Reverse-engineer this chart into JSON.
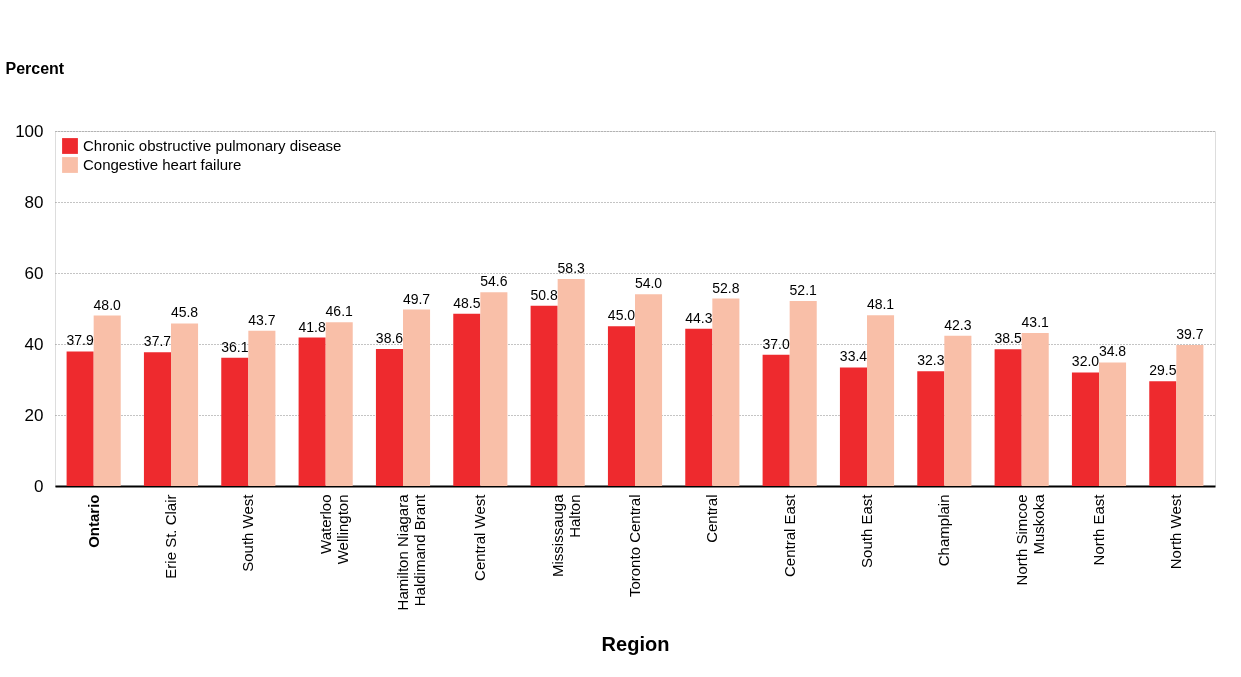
{
  "chart_data": {
    "type": "bar",
    "xlabel": "Region",
    "ylabel": "Percent",
    "categories": [
      "Ontario",
      "Erie St. Clair",
      "South West",
      "Waterloo\nWellington",
      "Hamilton Niagara\nHaldimand Brant",
      "Central West",
      "Mississauga\nHalton",
      "Toronto Central",
      "Central",
      "Central East",
      "South East",
      "Champlain",
      "North Simcoe\nMuskoka",
      "North East",
      "North West"
    ],
    "series": [
      {
        "name": "Chronic obstructive pulmonary disease",
        "color": "#ee2a2e",
        "values": [
          37.9,
          37.7,
          36.1,
          41.8,
          38.6,
          48.5,
          50.8,
          45.0,
          44.3,
          37.0,
          33.4,
          32.3,
          38.5,
          32.0,
          29.5
        ]
      },
      {
        "name": "Congestive heart failure",
        "color": "#f9bfa8",
        "values": [
          48.0,
          45.8,
          43.7,
          46.1,
          49.7,
          54.6,
          58.3,
          54.0,
          52.8,
          52.1,
          48.1,
          42.3,
          43.1,
          34.8,
          39.7
        ]
      }
    ],
    "value_labels": [
      [
        "37.9",
        "37.7",
        "36.1",
        "41.8",
        "38.6",
        "48.5",
        "50.8",
        "45.0",
        "44.3",
        "37.0",
        "33.4",
        "32.3",
        "38.5",
        "32.0",
        "29.5"
      ],
      [
        "48.0",
        "45.8",
        "43.7",
        "46.1",
        "49.7",
        "54.6",
        "58.3",
        "54.0",
        "52.8",
        "52.1",
        "48.1",
        "42.3",
        "43.1",
        "34.8",
        "39.7"
      ]
    ],
    "ylim": [
      0,
      100
    ],
    "yticks": [
      0,
      20,
      40,
      60,
      80,
      100
    ],
    "grid": "y",
    "legend": "top left"
  }
}
